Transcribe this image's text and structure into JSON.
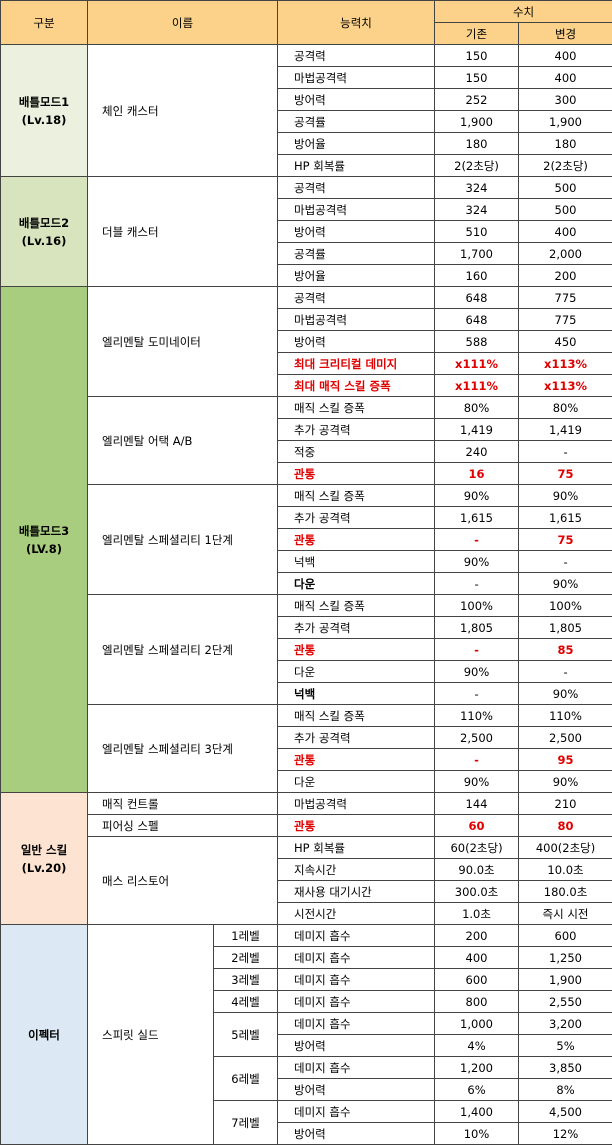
{
  "header": {
    "category": "구분",
    "name": "이름",
    "stat": "능력치",
    "value": "수치",
    "before": "기존",
    "after": "변경"
  },
  "groups": [
    {
      "label": "배틀모드1\n(Lv.18)",
      "color": "#ebf1de",
      "skills": [
        {
          "name": "체인 캐스터",
          "rows": [
            {
              "stat": "공격력",
              "before": "150",
              "after": "400"
            },
            {
              "stat": "마법공격력",
              "before": "150",
              "after": "400"
            },
            {
              "stat": "방어력",
              "before": "252",
              "after": "300"
            },
            {
              "stat": "공격률",
              "before": "1,900",
              "after": "1,900"
            },
            {
              "stat": "방어율",
              "before": "180",
              "after": "180"
            },
            {
              "stat": "HP 회복률",
              "before": "2(2초당)",
              "after": "2(2초당)"
            }
          ]
        }
      ]
    },
    {
      "label": "배틀모드2\n(Lv.16)",
      "color": "#d7e4bd",
      "skills": [
        {
          "name": "더블 캐스터",
          "rows": [
            {
              "stat": "공격력",
              "before": "324",
              "after": "500"
            },
            {
              "stat": "마법공격력",
              "before": "324",
              "after": "500"
            },
            {
              "stat": "방어력",
              "before": "510",
              "after": "400"
            },
            {
              "stat": "공격률",
              "before": "1,700",
              "after": "2,000"
            },
            {
              "stat": "방어율",
              "before": "160",
              "after": "200"
            }
          ]
        }
      ]
    },
    {
      "label": "배틀모드3\n(LV.8)",
      "color": "#a9cd7e",
      "skills": [
        {
          "name": "엘리멘탈 도미네이터",
          "rows": [
            {
              "stat": "공격력",
              "before": "648",
              "after": "775"
            },
            {
              "stat": "마법공격력",
              "before": "648",
              "after": "775"
            },
            {
              "stat": "방어력",
              "before": "588",
              "after": "450"
            },
            {
              "stat": "최대 크리티컬 데미지",
              "before": "x111%",
              "after": "x113%",
              "hl": "red"
            },
            {
              "stat": "최대 매직 스킬 증폭",
              "before": "x111%",
              "after": "x113%",
              "hl": "red"
            }
          ]
        },
        {
          "name": "엘리멘탈 어택 A/B",
          "rows": [
            {
              "stat": "매직 스킬 증폭",
              "before": "80%",
              "after": "80%"
            },
            {
              "stat": "추가 공격력",
              "before": "1,419",
              "after": "1,419"
            },
            {
              "stat": "적중",
              "before": "240",
              "after": "-"
            },
            {
              "stat": "관통",
              "before": "16",
              "after": "75",
              "hl": "red"
            }
          ]
        },
        {
          "name": "엘리멘탈 스페셜리티 1단계",
          "rows": [
            {
              "stat": "매직 스킬 증폭",
              "before": "90%",
              "after": "90%"
            },
            {
              "stat": "추가 공격력",
              "before": "1,615",
              "after": "1,615"
            },
            {
              "stat": "관통",
              "before": "-",
              "after": "75",
              "hl": "red"
            },
            {
              "stat": "넉백",
              "before": "90%",
              "after": "-"
            },
            {
              "stat": "다운",
              "before": "-",
              "after": "90%",
              "hl": "bold"
            }
          ]
        },
        {
          "name": "엘리멘탈 스페셜리티 2단계",
          "rows": [
            {
              "stat": "매직 스킬 증폭",
              "before": "100%",
              "after": "100%"
            },
            {
              "stat": "추가 공격력",
              "before": "1,805",
              "after": "1,805"
            },
            {
              "stat": "관통",
              "before": "-",
              "after": "85",
              "hl": "red"
            },
            {
              "stat": "다운",
              "before": "90%",
              "after": "-"
            },
            {
              "stat": "넉백",
              "before": "-",
              "after": "90%",
              "hl": "bold"
            }
          ]
        },
        {
          "name": "엘리멘탈 스페셜리티 3단계",
          "rows": [
            {
              "stat": "매직 스킬 증폭",
              "before": "110%",
              "after": "110%"
            },
            {
              "stat": "추가 공격력",
              "before": "2,500",
              "after": "2,500"
            },
            {
              "stat": "관통",
              "before": "-",
              "after": "95",
              "hl": "red"
            },
            {
              "stat": "다운",
              "before": "90%",
              "after": "90%"
            }
          ]
        }
      ]
    },
    {
      "label": "일반 스킬\n(Lv.20)",
      "color": "#fde4d2",
      "skills": [
        {
          "name": "매직 컨트롤",
          "rows": [
            {
              "stat": "마법공격력",
              "before": "144",
              "after": "210"
            }
          ]
        },
        {
          "name": "피어싱 스펠",
          "rows": [
            {
              "stat": "관통",
              "before": "60",
              "after": "80",
              "hl": "red"
            }
          ]
        },
        {
          "name": "매스 리스토어",
          "rows": [
            {
              "stat": "HP 회복률",
              "before": "60(2초당)",
              "after": "400(2초당)"
            },
            {
              "stat": "지속시간",
              "before": "90.0초",
              "after": "10.0초"
            },
            {
              "stat": "재사용 대기시간",
              "before": "300.0초",
              "after": "180.0초"
            },
            {
              "stat": "시전시간",
              "before": "1.0초",
              "after": "즉시 시전"
            }
          ]
        }
      ]
    },
    {
      "label": "이펙터",
      "color": "#dce9f5",
      "skills": [
        {
          "name": "스피릿 실드",
          "levels": [
            {
              "lv": "1레벨",
              "rows": [
                {
                  "stat": "데미지 흡수",
                  "before": "200",
                  "after": "600"
                }
              ]
            },
            {
              "lv": "2레벨",
              "rows": [
                {
                  "stat": "데미지 흡수",
                  "before": "400",
                  "after": "1,250"
                }
              ]
            },
            {
              "lv": "3레벨",
              "rows": [
                {
                  "stat": "데미지 흡수",
                  "before": "600",
                  "after": "1,900"
                }
              ]
            },
            {
              "lv": "4레벨",
              "rows": [
                {
                  "stat": "데미지 흡수",
                  "before": "800",
                  "after": "2,550"
                }
              ]
            },
            {
              "lv": "5레벨",
              "rows": [
                {
                  "stat": "데미지 흡수",
                  "before": "1,000",
                  "after": "3,200"
                },
                {
                  "stat": "방어력",
                  "before": "4%",
                  "after": "5%"
                }
              ]
            },
            {
              "lv": "6레벨",
              "rows": [
                {
                  "stat": "데미지 흡수",
                  "before": "1,200",
                  "after": "3,850"
                },
                {
                  "stat": "방어력",
                  "before": "6%",
                  "after": "8%"
                }
              ]
            },
            {
              "lv": "7레벨",
              "rows": [
                {
                  "stat": "데미지 흡수",
                  "before": "1,400",
                  "after": "4,500"
                },
                {
                  "stat": "방어력",
                  "before": "10%",
                  "after": "12%"
                }
              ]
            }
          ]
        }
      ]
    }
  ]
}
